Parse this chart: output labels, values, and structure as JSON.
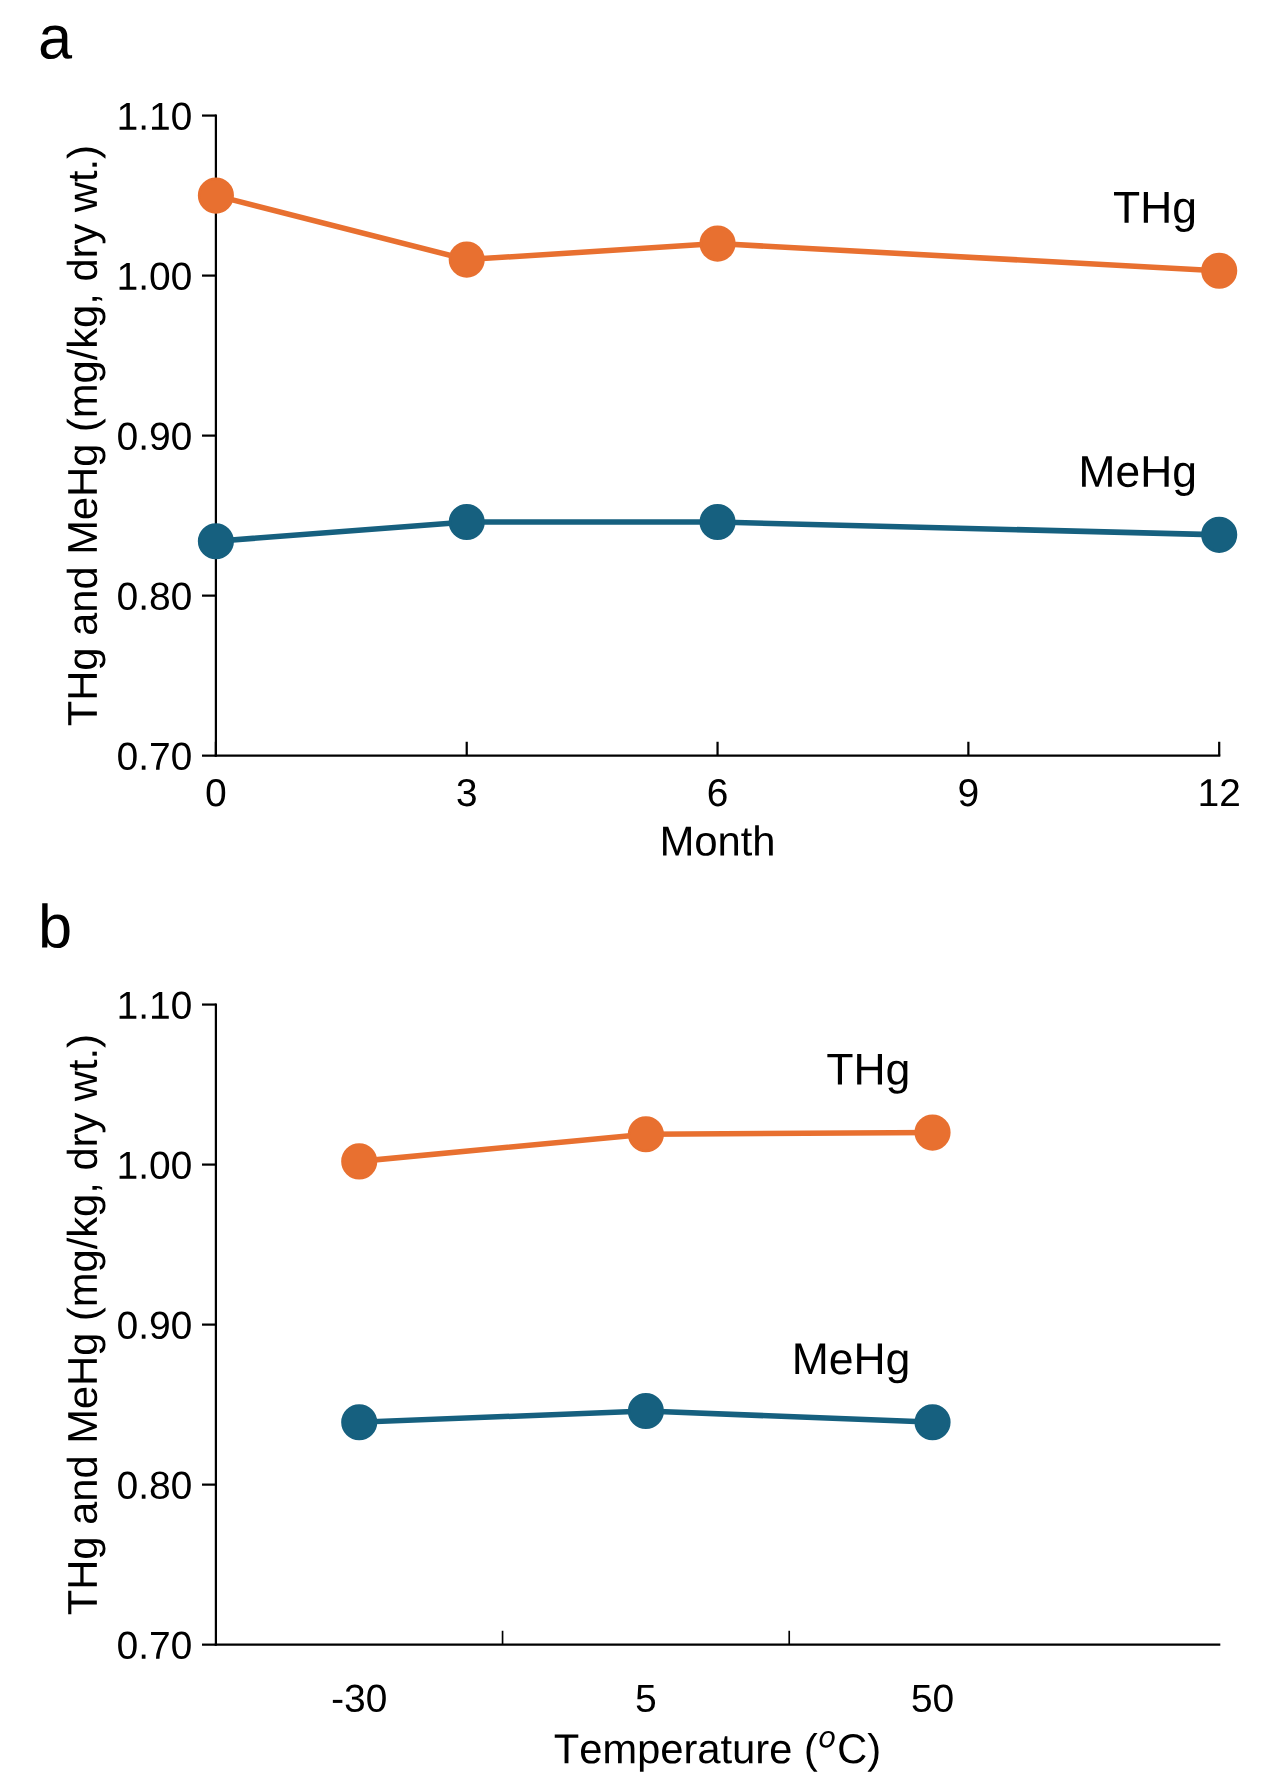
{
  "chart_data": [
    {
      "type": "line",
      "title": "a",
      "xlabel": "Month",
      "ylabel": "THg and MeHg (mg/kg, dry wt.)",
      "x": [
        0,
        3,
        6,
        12
      ],
      "xlim": [
        0,
        12
      ],
      "xticks": [
        0,
        3,
        6,
        9,
        12
      ],
      "ylim": [
        0.7,
        1.1
      ],
      "yticks": [
        {
          "value": 0.7,
          "label": "0.70"
        },
        {
          "value": 0.8,
          "label": "0.80"
        },
        {
          "value": 0.9,
          "label": "0.90"
        },
        {
          "value": 1.0,
          "label": "1.00"
        },
        {
          "value": 1.1,
          "label": "1.10"
        }
      ],
      "marker": "circle",
      "line_style": "solid",
      "grid": false,
      "legend": false,
      "series": [
        {
          "name": "THg",
          "color": "#e87030",
          "values": [
            1.05,
            1.01,
            1.02,
            1.003
          ]
        },
        {
          "name": "MeHg",
          "color": "#16607f",
          "values": [
            0.834,
            0.846,
            0.846,
            0.838
          ]
        }
      ]
    },
    {
      "type": "line",
      "title": "b",
      "xlabel": "Temperature ($^{o}$C)",
      "ylabel": "THg and MeHg (mg/kg, dry wt.)",
      "categories": [
        "-30",
        "5",
        "50"
      ],
      "ylim": [
        0.7,
        1.1
      ],
      "yticks": [
        {
          "value": 0.7,
          "label": "0.70"
        },
        {
          "value": 0.8,
          "label": "0.80"
        },
        {
          "value": 0.9,
          "label": "0.90"
        },
        {
          "value": 1.0,
          "label": "1.00"
        },
        {
          "value": 1.1,
          "label": "1.10"
        }
      ],
      "marker": "circle",
      "line_style": "solid",
      "grid": false,
      "legend": false,
      "series": [
        {
          "name": "THg",
          "color": "#e87030",
          "values": [
            1.002,
            1.019,
            1.02
          ]
        },
        {
          "name": "MeHg",
          "color": "#16607f",
          "values": [
            0.839,
            0.846,
            0.839
          ]
        }
      ]
    }
  ]
}
